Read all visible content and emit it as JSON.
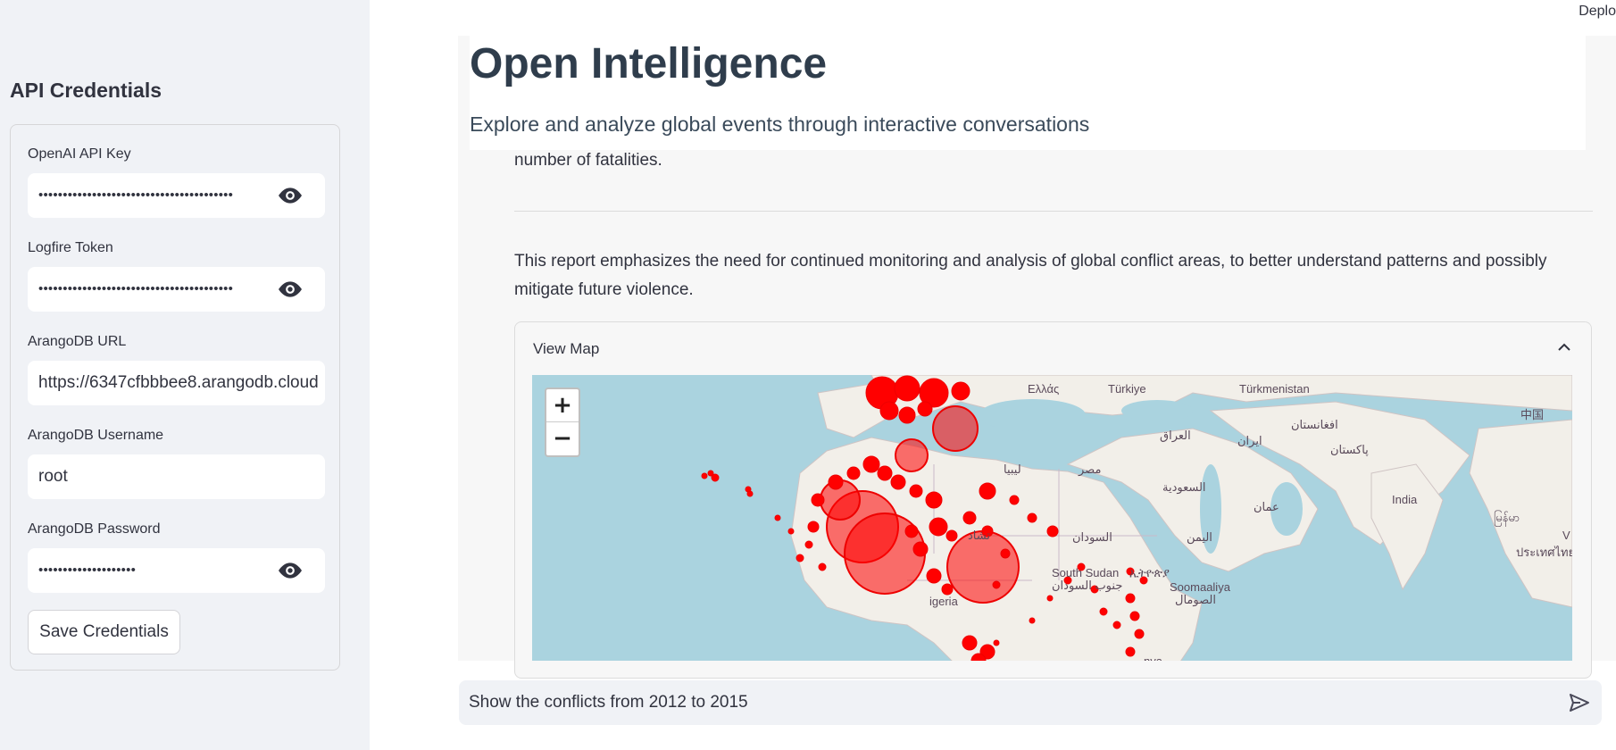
{
  "app": {
    "deploy_label": "Deplo"
  },
  "sidebar": {
    "title": "API Credentials",
    "fields": [
      {
        "label": "OpenAI API Key",
        "value": "••••••••••••••••••••••••••••••••••••••••",
        "type": "password"
      },
      {
        "label": "Logfire Token",
        "value": "••••••••••••••••••••••••••••••••••••••••",
        "type": "password"
      },
      {
        "label": "ArangoDB URL",
        "value": "https://6347cfbbbee8.arangodb.cloud",
        "type": "text"
      },
      {
        "label": "ArangoDB Username",
        "value": "root",
        "type": "text"
      },
      {
        "label": "ArangoDB Password",
        "value": "••••••••••••••••••••",
        "type": "password"
      }
    ],
    "save_label": "Save Credentials"
  },
  "header": {
    "title": "Open Intelligence",
    "subtitle": "Explore and analyze global events through interactive conversations"
  },
  "content": {
    "line_fatalities": "number of fatalities.",
    "report_line1": "This report emphasizes the need for continued monitoring and analysis of global conflict areas, to better understand patterns and possibly",
    "report_line2": "mitigate future violence."
  },
  "expander": {
    "label": "View Map",
    "expanded": true
  },
  "map": {
    "zoom_in": "+",
    "zoom_out": "−",
    "marker_color": "#ff0000",
    "labels": {
      "greece": "Ελλάς",
      "turkey": "Türkiye",
      "turkmenistan": "Türkmenistan",
      "china": "中国",
      "afghanistan": "افغانستان",
      "iraq": "العراق",
      "iran": "ایران",
      "pakistan": "پاکستان",
      "libya": "ليبيا",
      "egypt": "مصر",
      "saudi": "السعودية",
      "india": "India",
      "oman": "عمان",
      "myanmar": "မြန်မာ",
      "chad": "تشاد",
      "sudan": "السودان",
      "yemen": "اليمن",
      "thailand": "ประเทศไทย",
      "south_sudan": "South Sudan",
      "south_sudan_ar": "جنوب السودان",
      "ethiopia": "ኢትዮጵያ",
      "somalia": "Soomaaliya",
      "somalia_ar": "الصومال",
      "nigeria": "igeria",
      "kenya": "nya",
      "viet": "V"
    }
  },
  "chat": {
    "input_value": "Show the conflicts from 2012 to 2015"
  }
}
